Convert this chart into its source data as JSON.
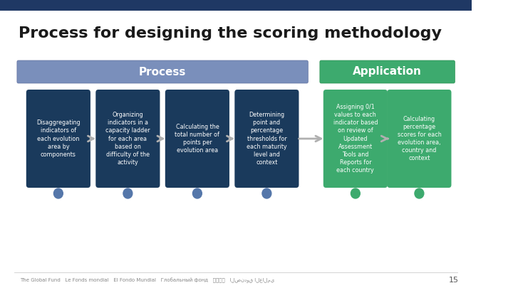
{
  "title": "Process for designing the scoring methodology",
  "title_fontsize": 16,
  "title_color": "#1a1a1a",
  "bg_color": "#ffffff",
  "top_bar_color": "#4a6fa5",
  "process_header": "Process",
  "application_header": "Application",
  "process_header_bg": "#6e7fa8",
  "application_header_bg": "#3daa6e",
  "header_text_color": "#ffffff",
  "box_blue": "#1a3a5c",
  "box_green": "#3daa6e",
  "box_text_color": "#ffffff",
  "arrow_color": "#b0b0b0",
  "dot_blue": "#5577aa",
  "dot_green": "#3daa6e",
  "footer_text": "The Global Fund   Le Fonds mondial   El Fondo Mundial   Глобальный фонд   全球基金   الصندوق العالمي",
  "footer_page": "15",
  "process_boxes": [
    "Disaggregating\nindicators of\neach evolution\narea by\ncomponents",
    "Organizing\nindicators in a\ncapacity ladder\nfor each area\nbased on\ndifficulty of the\nactivity",
    "Calculating the\ntotal number of\npoints per\nevolution area",
    "Determining\npoint and\npercentage\nthresholds for\neach maturity\nlevel and\ncontext"
  ],
  "application_boxes": [
    "Assigning 0/1\nvalues to each\nindicator based\non review of\nUpdated\nAssessment\nTools and\nReports for\neach country",
    "Calculating\npercentage\nscores for each\nevolution area,\ncountry and\ncontext"
  ]
}
